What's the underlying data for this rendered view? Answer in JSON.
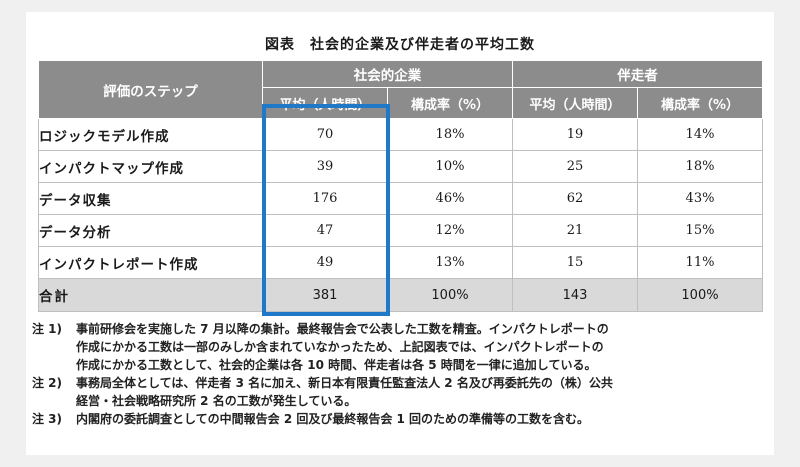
{
  "caption": "図表　社会的企業及び伴走者の平均工数",
  "header": {
    "step_label": "評価のステップ",
    "group_social": "社会的企業",
    "group_partner": "伴走者",
    "col_avg": "平均（人時間）",
    "col_ratio": "構成率（%）"
  },
  "rows": [
    {
      "step": "ロジックモデル作成",
      "social_avg": "70",
      "social_ratio": "18%",
      "partner_avg": "19",
      "partner_ratio": "14%"
    },
    {
      "step": "インパクトマップ作成",
      "social_avg": "39",
      "social_ratio": "10%",
      "partner_avg": "25",
      "partner_ratio": "18%"
    },
    {
      "step": "データ収集",
      "social_avg": "176",
      "social_ratio": "46%",
      "partner_avg": "62",
      "partner_ratio": "43%"
    },
    {
      "step": "データ分析",
      "social_avg": "47",
      "social_ratio": "12%",
      "partner_avg": "21",
      "partner_ratio": "15%"
    },
    {
      "step": "インパクトレポート作成",
      "social_avg": "49",
      "social_ratio": "13%",
      "partner_avg": "15",
      "partner_ratio": "11%"
    }
  ],
  "total": {
    "step": "合計",
    "social_avg": "381",
    "social_ratio": "100%",
    "partner_avg": "143",
    "partner_ratio": "100%"
  },
  "highlight_color": "#1f78c8",
  "notes": [
    {
      "mark": "注 1)",
      "lines": [
        "事前研修会を実施した 7 月以降の集計。最終報告会で公表した工数を精査。インパクトレポートの",
        "作成にかかる工数は一部のみしか含まれていなかったため、上記図表では、インパクトレポートの",
        "作成にかかる工数として、社会的企業は各 10 時間、伴走者は各 5 時間を一律に追加している。"
      ]
    },
    {
      "mark": "注 2)",
      "lines": [
        "事務局全体としては、伴走者 3 名に加え、新日本有限責任監査法人 2 名及び再委託先の（株）公共",
        "経営・社会戦略研究所 2 名の工数が発生している。"
      ]
    },
    {
      "mark": "注 3)",
      "lines": [
        "内閣府の委託調査としての中間報告会 2 回及び最終報告会 1 回のための準備等の工数を含む。"
      ]
    }
  ]
}
